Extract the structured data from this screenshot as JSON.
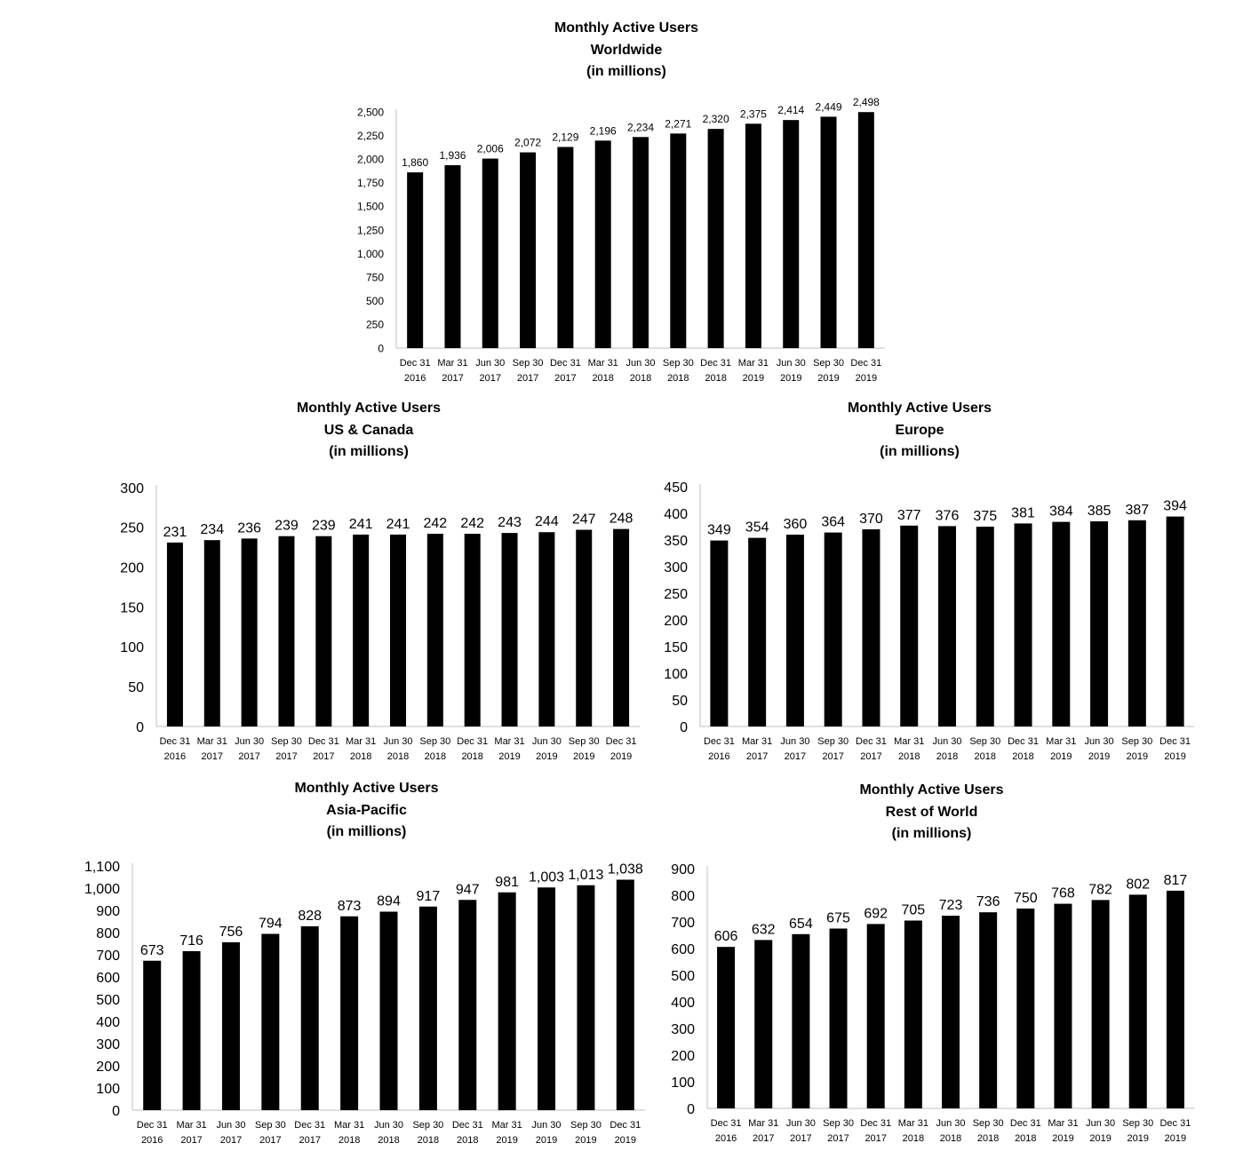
{
  "chart_data": [
    {
      "id": "worldwide",
      "type": "bar",
      "title": [
        "Monthly Active Users",
        "Worldwide",
        "(in millions)"
      ],
      "categories": [
        [
          "Dec 31",
          "2016"
        ],
        [
          "Mar 31",
          "2017"
        ],
        [
          "Jun 30",
          "2017"
        ],
        [
          "Sep 30",
          "2017"
        ],
        [
          "Dec 31",
          "2017"
        ],
        [
          "Mar 31",
          "2018"
        ],
        [
          "Jun 30",
          "2018"
        ],
        [
          "Sep 30",
          "2018"
        ],
        [
          "Dec 31",
          "2018"
        ],
        [
          "Mar 31",
          "2019"
        ],
        [
          "Jun 30",
          "2019"
        ],
        [
          "Sep 30",
          "2019"
        ],
        [
          "Dec 31",
          "2019"
        ]
      ],
      "values": [
        1860,
        1936,
        2006,
        2072,
        2129,
        2196,
        2234,
        2271,
        2320,
        2375,
        2414,
        2449,
        2498
      ],
      "value_labels": [
        "1,860",
        "1,936",
        "2,006",
        "2,072",
        "2,129",
        "2,196",
        "2,234",
        "2,271",
        "2,320",
        "2,375",
        "2,414",
        "2,449",
        "2,498"
      ],
      "yticks": [
        0,
        250,
        500,
        750,
        1000,
        1250,
        1500,
        1750,
        2000,
        2250,
        2500
      ],
      "ytick_labels": [
        "0",
        "250",
        "500",
        "750",
        "1,000",
        "1,250",
        "1,500",
        "1,750",
        "2,000",
        "2,250",
        "2,500"
      ],
      "ylim": [
        0,
        2500
      ],
      "bar_color": "#000000",
      "grid": false
    },
    {
      "id": "us-canada",
      "type": "bar",
      "title": [
        "Monthly Active Users",
        "US & Canada",
        "(in millions)"
      ],
      "categories": [
        [
          "Dec 31",
          "2016"
        ],
        [
          "Mar 31",
          "2017"
        ],
        [
          "Jun 30",
          "2017"
        ],
        [
          "Sep 30",
          "2017"
        ],
        [
          "Dec 31",
          "2017"
        ],
        [
          "Mar 31",
          "2018"
        ],
        [
          "Jun 30",
          "2018"
        ],
        [
          "Sep 30",
          "2018"
        ],
        [
          "Dec 31",
          "2018"
        ],
        [
          "Mar 31",
          "2019"
        ],
        [
          "Jun 30",
          "2019"
        ],
        [
          "Sep 30",
          "2019"
        ],
        [
          "Dec 31",
          "2019"
        ]
      ],
      "values": [
        231,
        234,
        236,
        239,
        239,
        241,
        241,
        242,
        242,
        243,
        244,
        247,
        248
      ],
      "value_labels": [
        "231",
        "234",
        "236",
        "239",
        "239",
        "241",
        "241",
        "242",
        "242",
        "243",
        "244",
        "247",
        "248"
      ],
      "yticks": [
        0,
        50,
        100,
        150,
        200,
        250,
        300
      ],
      "ytick_labels": [
        "0",
        "50",
        "100",
        "150",
        "200",
        "250",
        "300"
      ],
      "ylim": [
        0,
        300
      ],
      "bar_color": "#000000",
      "grid": false
    },
    {
      "id": "europe",
      "type": "bar",
      "title": [
        "Monthly Active Users",
        "Europe",
        "(in millions)"
      ],
      "categories": [
        [
          "Dec 31",
          "2016"
        ],
        [
          "Mar 31",
          "2017"
        ],
        [
          "Jun 30",
          "2017"
        ],
        [
          "Sep 30",
          "2017"
        ],
        [
          "Dec 31",
          "2017"
        ],
        [
          "Mar 31",
          "2018"
        ],
        [
          "Jun 30",
          "2018"
        ],
        [
          "Sep 30",
          "2018"
        ],
        [
          "Dec 31",
          "2018"
        ],
        [
          "Mar 31",
          "2019"
        ],
        [
          "Jun 30",
          "2019"
        ],
        [
          "Sep 30",
          "2019"
        ],
        [
          "Dec 31",
          "2019"
        ]
      ],
      "values": [
        349,
        354,
        360,
        364,
        370,
        377,
        376,
        375,
        381,
        384,
        385,
        387,
        394
      ],
      "value_labels": [
        "349",
        "354",
        "360",
        "364",
        "370",
        "377",
        "376",
        "375",
        "381",
        "384",
        "385",
        "387",
        "394"
      ],
      "yticks": [
        0,
        50,
        100,
        150,
        200,
        250,
        300,
        350,
        400,
        450
      ],
      "ytick_labels": [
        "0",
        "50",
        "100",
        "150",
        "200",
        "250",
        "300",
        "350",
        "400",
        "450"
      ],
      "ylim": [
        0,
        450
      ],
      "bar_color": "#000000",
      "grid": false
    },
    {
      "id": "asia-pacific",
      "type": "bar",
      "title": [
        "Monthly Active Users",
        "Asia-Pacific",
        "(in millions)"
      ],
      "categories": [
        [
          "Dec 31",
          "2016"
        ],
        [
          "Mar 31",
          "2017"
        ],
        [
          "Jun 30",
          "2017"
        ],
        [
          "Sep 30",
          "2017"
        ],
        [
          "Dec 31",
          "2017"
        ],
        [
          "Mar 31",
          "2018"
        ],
        [
          "Jun 30",
          "2018"
        ],
        [
          "Sep 30",
          "2018"
        ],
        [
          "Dec 31",
          "2018"
        ],
        [
          "Mar 31",
          "2019"
        ],
        [
          "Jun 30",
          "2019"
        ],
        [
          "Sep 30",
          "2019"
        ],
        [
          "Dec 31",
          "2019"
        ]
      ],
      "values": [
        673,
        716,
        756,
        794,
        828,
        873,
        894,
        917,
        947,
        981,
        1003,
        1013,
        1038
      ],
      "value_labels": [
        "673",
        "716",
        "756",
        "794",
        "828",
        "873",
        "894",
        "917",
        "947",
        "981",
        "1,003",
        "1,013",
        "1,038"
      ],
      "yticks": [
        0,
        100,
        200,
        300,
        400,
        500,
        600,
        700,
        800,
        900,
        1000,
        1100
      ],
      "ytick_labels": [
        "0",
        "100",
        "200",
        "300",
        "400",
        "500",
        "600",
        "700",
        "800",
        "900",
        "1,000",
        "1,100"
      ],
      "ylim": [
        0,
        1100
      ],
      "bar_color": "#000000",
      "grid": false
    },
    {
      "id": "rest-of-world",
      "type": "bar",
      "title": [
        "Monthly Active Users",
        "Rest of World",
        "(in millions)"
      ],
      "categories": [
        [
          "Dec 31",
          "2016"
        ],
        [
          "Mar 31",
          "2017"
        ],
        [
          "Jun 30",
          "2017"
        ],
        [
          "Sep 30",
          "2017"
        ],
        [
          "Dec 31",
          "2017"
        ],
        [
          "Mar 31",
          "2018"
        ],
        [
          "Jun 30",
          "2018"
        ],
        [
          "Sep 30",
          "2018"
        ],
        [
          "Dec 31",
          "2018"
        ],
        [
          "Mar 31",
          "2019"
        ],
        [
          "Jun 30",
          "2019"
        ],
        [
          "Sep 30",
          "2019"
        ],
        [
          "Dec 31",
          "2019"
        ]
      ],
      "values": [
        606,
        632,
        654,
        675,
        692,
        705,
        723,
        736,
        750,
        768,
        782,
        802,
        817
      ],
      "value_labels": [
        "606",
        "632",
        "654",
        "675",
        "692",
        "705",
        "723",
        "736",
        "750",
        "768",
        "782",
        "802",
        "817"
      ],
      "yticks": [
        0,
        100,
        200,
        300,
        400,
        500,
        600,
        700,
        800,
        900
      ],
      "ytick_labels": [
        "0",
        "100",
        "200",
        "300",
        "400",
        "500",
        "600",
        "700",
        "800",
        "900"
      ],
      "ylim": [
        0,
        900
      ],
      "bar_color": "#000000",
      "grid": false
    }
  ]
}
